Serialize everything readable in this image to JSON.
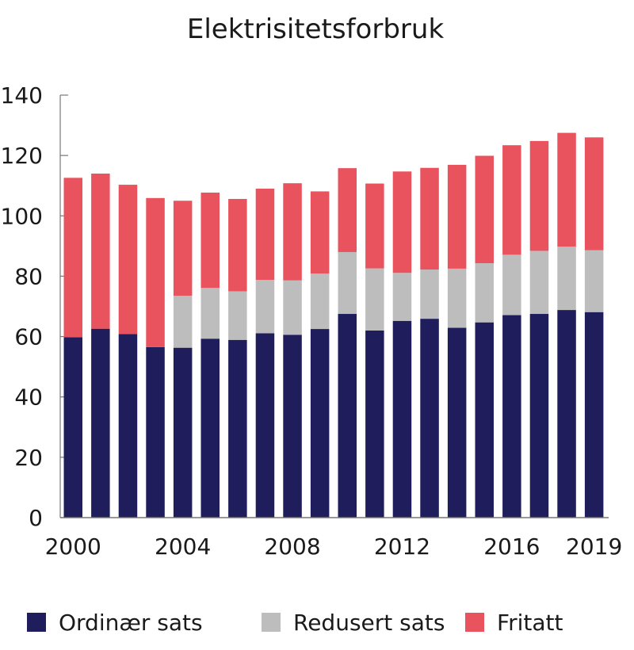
{
  "chart_data": {
    "type": "bar",
    "stacked": true,
    "title": "Elektrisitetsforbruk",
    "xlabel": "",
    "ylabel": "",
    "ylim": [
      0,
      140
    ],
    "yticks": [
      "0",
      "20",
      "40",
      "60",
      "80",
      "100",
      "120",
      "140"
    ],
    "xtick_labels": [
      "2000",
      "2004",
      "2008",
      "2012",
      "2016",
      "2019"
    ],
    "categories": [
      "2000",
      "2001",
      "2002",
      "2003",
      "2004",
      "2005",
      "2006",
      "2007",
      "2008",
      "2009",
      "2010",
      "2011",
      "2012",
      "2013",
      "2014",
      "2015",
      "2016",
      "2017",
      "2018",
      "2019"
    ],
    "series": [
      {
        "name": "Ordinær sats",
        "color": "#1f1d5c",
        "values": [
          59.8,
          62.6,
          60.8,
          56.5,
          56.3,
          59.3,
          58.9,
          61.1,
          60.6,
          62.5,
          67.5,
          62.0,
          65.2,
          65.9,
          62.9,
          64.7,
          67.1,
          67.5,
          68.8,
          68.1
        ]
      },
      {
        "name": "Redusert sats",
        "color": "#bdbdbd",
        "values": [
          0,
          0,
          0,
          0,
          17.2,
          16.8,
          16.1,
          17.7,
          18.0,
          18.4,
          20.5,
          20.6,
          15.9,
          16.3,
          19.6,
          19.6,
          20.0,
          20.9,
          21.0,
          20.5
        ]
      },
      {
        "name": "Fritatt",
        "color": "#e9535d",
        "values": [
          52.8,
          51.4,
          49.5,
          49.4,
          31.5,
          31.6,
          30.6,
          30.2,
          32.2,
          27.2,
          27.8,
          28.1,
          33.6,
          33.7,
          34.4,
          35.6,
          36.3,
          36.4,
          37.7,
          37.4
        ]
      }
    ],
    "grid": false,
    "legend_position": "bottom"
  }
}
